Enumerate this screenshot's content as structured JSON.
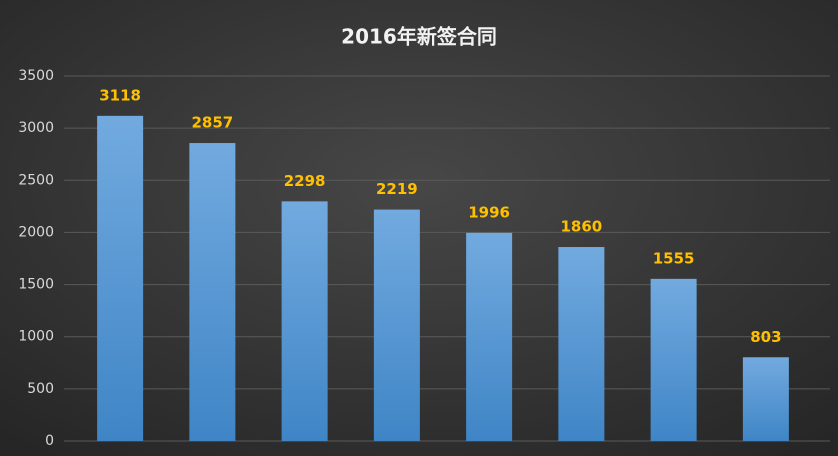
{
  "chart_data": {
    "type": "bar",
    "title": "2016年新签合同",
    "values": [
      3118,
      2857,
      2298,
      2219,
      1996,
      1860,
      1555,
      803
    ],
    "color": "#5b9bd5",
    "label_color": "#ffc000",
    "ylim": [
      0,
      3500
    ],
    "yticks": [
      0,
      500,
      1000,
      1500,
      2000,
      2500,
      3000,
      3500
    ],
    "grid": true
  }
}
